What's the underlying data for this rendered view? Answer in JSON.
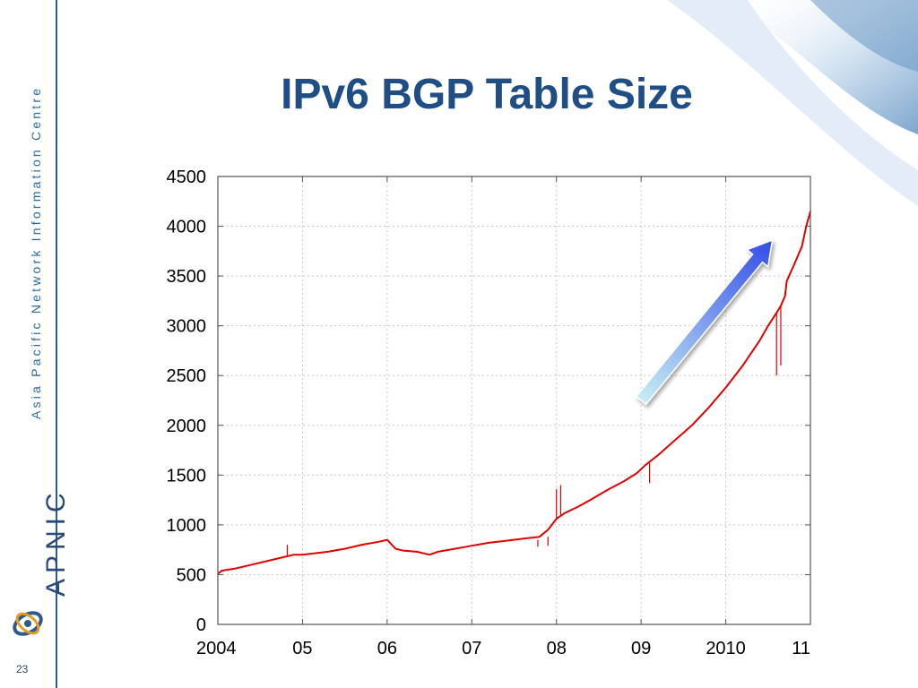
{
  "slide": {
    "title": "IPv6 BGP Table Size",
    "organization": "Asia Pacific Network Information Centre",
    "brand": "APNIC",
    "slide_number": "23"
  },
  "colors": {
    "title": "#1f4e86",
    "series": "#e00000",
    "grid": "#c8c8c8",
    "arrow_start": "#c8eef4",
    "arrow_end": "#3650e8"
  },
  "chart_data": {
    "type": "line",
    "title": "IPv6 BGP Table Size",
    "xlabel": "",
    "ylabel": "",
    "grid": true,
    "xlim": [
      2004.0,
      2011.0
    ],
    "ylim": [
      0,
      4500
    ],
    "x_ticks": [
      {
        "value": 2004,
        "label": "2004"
      },
      {
        "value": 2005,
        "label": "05"
      },
      {
        "value": 2006,
        "label": "06"
      },
      {
        "value": 2007,
        "label": "07"
      },
      {
        "value": 2008,
        "label": "08"
      },
      {
        "value": 2009,
        "label": "09"
      },
      {
        "value": 2010,
        "label": "2010"
      },
      {
        "value": 2011,
        "label": "11"
      }
    ],
    "y_ticks": [
      {
        "value": 0,
        "label": "0"
      },
      {
        "value": 500,
        "label": "500"
      },
      {
        "value": 1000,
        "label": "1000"
      },
      {
        "value": 1500,
        "label": "1500"
      },
      {
        "value": 2000,
        "label": "2000"
      },
      {
        "value": 2500,
        "label": "2500"
      },
      {
        "value": 3000,
        "label": "3000"
      },
      {
        "value": 3500,
        "label": "3500"
      },
      {
        "value": 4000,
        "label": "4000"
      },
      {
        "value": 4500,
        "label": "4500"
      }
    ],
    "series": [
      {
        "x": [
          2004.0,
          2004.05,
          2004.2,
          2004.4,
          2004.6,
          2004.8,
          2004.9,
          2005.0,
          2005.1,
          2005.3,
          2005.5,
          2005.7,
          2005.9,
          2006.0,
          2006.1,
          2006.2,
          2006.35,
          2006.5,
          2006.6,
          2006.8,
          2007.0,
          2007.2,
          2007.4,
          2007.6,
          2007.8,
          2007.9,
          2008.0,
          2008.1,
          2008.25,
          2008.4,
          2008.6,
          2008.8,
          2008.95,
          2009.05,
          2009.2,
          2009.4,
          2009.6,
          2009.8,
          2010.0,
          2010.2,
          2010.4,
          2010.5,
          2010.6,
          2010.65,
          2010.7,
          2010.72,
          2010.8,
          2010.9,
          2010.95,
          2011.0
        ],
        "y": [
          510,
          540,
          560,
          600,
          640,
          680,
          700,
          700,
          710,
          730,
          760,
          800,
          830,
          850,
          760,
          740,
          730,
          700,
          730,
          760,
          790,
          820,
          840,
          860,
          880,
          950,
          1060,
          1120,
          1180,
          1250,
          1350,
          1440,
          1520,
          1600,
          1700,
          1850,
          2000,
          2180,
          2380,
          2600,
          2850,
          3000,
          3130,
          3200,
          3300,
          3450,
          3600,
          3800,
          4000,
          4150
        ]
      }
    ],
    "spikes": [
      {
        "x": 2004.82,
        "y0": 690,
        "y1": 800
      },
      {
        "x": 2007.78,
        "y0": 850,
        "y1": 780
      },
      {
        "x": 2007.9,
        "y0": 880,
        "y1": 790
      },
      {
        "x": 2008.0,
        "y0": 1060,
        "y1": 1360
      },
      {
        "x": 2008.05,
        "y0": 1090,
        "y1": 1400
      },
      {
        "x": 2009.1,
        "y0": 1620,
        "y1": 1420
      },
      {
        "x": 2010.6,
        "y0": 3130,
        "y1": 2500
      },
      {
        "x": 2010.65,
        "y0": 3200,
        "y1": 2600
      }
    ],
    "annotations": [
      {
        "type": "arrow",
        "direction": "upward trend",
        "from": [
          2009.0,
          2250
        ],
        "to": [
          2010.55,
          3860
        ]
      }
    ]
  }
}
